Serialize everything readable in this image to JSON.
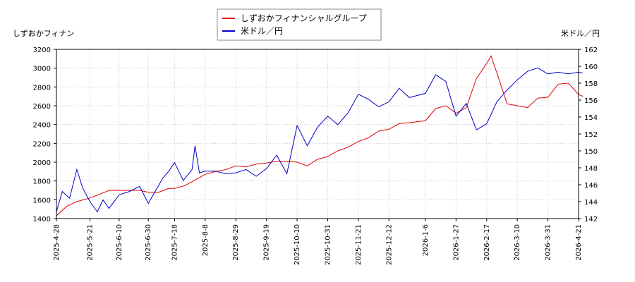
{
  "chart_data": {
    "type": "line",
    "legend": {
      "placement": "top-center"
    },
    "grid": true,
    "left_axis": {
      "label": "しずおかフィナン",
      "range": [
        1400,
        3200
      ],
      "ticks": [
        1400,
        1600,
        1800,
        2000,
        2200,
        2400,
        2600,
        2800,
        3000,
        3200
      ]
    },
    "right_axis": {
      "label": "米ドル／円",
      "range": [
        142,
        162
      ],
      "ticks": [
        142,
        144,
        146,
        148,
        150,
        152,
        154,
        156,
        158,
        160,
        162
      ]
    },
    "x_ticks": [
      "2025-4-28",
      "2025-5-21",
      "2025-6-10",
      "2025-6-30",
      "2025-7-18",
      "2025-8-8",
      "2025-8-29",
      "2025-9-19",
      "2025-10-10",
      "2025-10-31",
      "2025-11-21",
      "2025-12-12",
      "2026-1-6",
      "2026-1-27",
      "2026-2-17",
      "2026-3-10",
      "2026-3-31",
      "2026-4-21"
    ],
    "series": [
      {
        "name": "しずおかフィナンシャルグループ",
        "color": "#dd0000",
        "axis": "left",
        "points": [
          [
            "2025-4-28",
            1430
          ],
          [
            "2025-5-5",
            1530
          ],
          [
            "2025-5-12",
            1580
          ],
          [
            "2025-5-21",
            1620
          ],
          [
            "2025-5-28",
            1660
          ],
          [
            "2025-6-3",
            1700
          ],
          [
            "2025-6-10",
            1700
          ],
          [
            "2025-6-17",
            1700
          ],
          [
            "2025-6-24",
            1700
          ],
          [
            "2025-6-30",
            1680
          ],
          [
            "2025-7-7",
            1680
          ],
          [
            "2025-7-14",
            1720
          ],
          [
            "2025-7-18",
            1720
          ],
          [
            "2025-7-25",
            1750
          ],
          [
            "2025-8-1",
            1810
          ],
          [
            "2025-8-8",
            1870
          ],
          [
            "2025-8-15",
            1900
          ],
          [
            "2025-8-22",
            1920
          ],
          [
            "2025-8-29",
            1960
          ],
          [
            "2025-9-5",
            1950
          ],
          [
            "2025-9-12",
            1980
          ],
          [
            "2025-9-19",
            1990
          ],
          [
            "2025-9-26",
            2010
          ],
          [
            "2025-10-3",
            2010
          ],
          [
            "2025-10-10",
            2000
          ],
          [
            "2025-10-17",
            1960
          ],
          [
            "2025-10-24",
            2030
          ],
          [
            "2025-10-31",
            2060
          ],
          [
            "2025-11-7",
            2120
          ],
          [
            "2025-11-14",
            2160
          ],
          [
            "2025-11-21",
            2220
          ],
          [
            "2025-11-28",
            2260
          ],
          [
            "2025-12-5",
            2330
          ],
          [
            "2025-12-12",
            2350
          ],
          [
            "2025-12-19",
            2410
          ],
          [
            "2025-12-26",
            2420
          ],
          [
            "2026-1-6",
            2440
          ],
          [
            "2026-1-13",
            2570
          ],
          [
            "2026-1-20",
            2600
          ],
          [
            "2026-1-27",
            2520
          ],
          [
            "2026-2-3",
            2580
          ],
          [
            "2026-2-10",
            2890
          ],
          [
            "2026-2-17",
            3050
          ],
          [
            "2026-2-20",
            3130
          ],
          [
            "2026-2-24",
            2950
          ],
          [
            "2026-3-3",
            2620
          ],
          [
            "2026-3-10",
            2600
          ],
          [
            "2026-3-17",
            2580
          ],
          [
            "2026-3-24",
            2680
          ],
          [
            "2026-3-31",
            2690
          ],
          [
            "2026-4-7",
            2830
          ],
          [
            "2026-4-14",
            2840
          ],
          [
            "2026-4-21",
            2720
          ],
          [
            "2026-4-24",
            2700
          ]
        ]
      },
      {
        "name": "米ドル／円",
        "color": "#0000cc",
        "axis": "right",
        "points": [
          [
            "2025-4-28",
            142.8
          ],
          [
            "2025-5-2",
            145.2
          ],
          [
            "2025-5-7",
            144.4
          ],
          [
            "2025-5-12",
            147.8
          ],
          [
            "2025-5-16",
            145.6
          ],
          [
            "2025-5-21",
            144.0
          ],
          [
            "2025-5-26",
            142.8
          ],
          [
            "2025-5-30",
            144.2
          ],
          [
            "2025-6-3",
            143.2
          ],
          [
            "2025-6-10",
            144.8
          ],
          [
            "2025-6-17",
            145.2
          ],
          [
            "2025-6-24",
            145.8
          ],
          [
            "2025-6-30",
            143.8
          ],
          [
            "2025-7-4",
            145.0
          ],
          [
            "2025-7-10",
            146.8
          ],
          [
            "2025-7-14",
            147.6
          ],
          [
            "2025-7-18",
            148.6
          ],
          [
            "2025-7-24",
            146.5
          ],
          [
            "2025-7-30",
            147.8
          ],
          [
            "2025-8-1",
            150.6
          ],
          [
            "2025-8-4",
            147.4
          ],
          [
            "2025-8-8",
            147.6
          ],
          [
            "2025-8-15",
            147.6
          ],
          [
            "2025-8-22",
            147.3
          ],
          [
            "2025-8-29",
            147.4
          ],
          [
            "2025-9-5",
            147.8
          ],
          [
            "2025-9-12",
            147.0
          ],
          [
            "2025-9-19",
            147.9
          ],
          [
            "2025-9-26",
            149.5
          ],
          [
            "2025-10-3",
            147.3
          ],
          [
            "2025-10-10",
            153.0
          ],
          [
            "2025-10-17",
            150.6
          ],
          [
            "2025-10-24",
            152.8
          ],
          [
            "2025-10-31",
            154.1
          ],
          [
            "2025-11-7",
            153.1
          ],
          [
            "2025-11-14",
            154.5
          ],
          [
            "2025-11-21",
            156.7
          ],
          [
            "2025-11-28",
            156.1
          ],
          [
            "2025-12-5",
            155.2
          ],
          [
            "2025-12-12",
            155.8
          ],
          [
            "2025-12-19",
            157.4
          ],
          [
            "2025-12-26",
            156.3
          ],
          [
            "2026-1-6",
            156.8
          ],
          [
            "2026-1-13",
            159.0
          ],
          [
            "2026-1-20",
            158.2
          ],
          [
            "2026-1-27",
            154.1
          ],
          [
            "2026-2-3",
            155.6
          ],
          [
            "2026-2-10",
            152.5
          ],
          [
            "2026-2-17",
            153.2
          ],
          [
            "2026-2-24",
            155.8
          ],
          [
            "2026-3-3",
            157.2
          ],
          [
            "2026-3-10",
            158.4
          ],
          [
            "2026-3-17",
            159.4
          ],
          [
            "2026-3-24",
            159.8
          ],
          [
            "2026-3-31",
            159.1
          ],
          [
            "2026-4-7",
            159.3
          ],
          [
            "2026-4-14",
            159.1
          ],
          [
            "2026-4-21",
            159.3
          ],
          [
            "2026-4-24",
            159.2
          ]
        ]
      }
    ]
  }
}
